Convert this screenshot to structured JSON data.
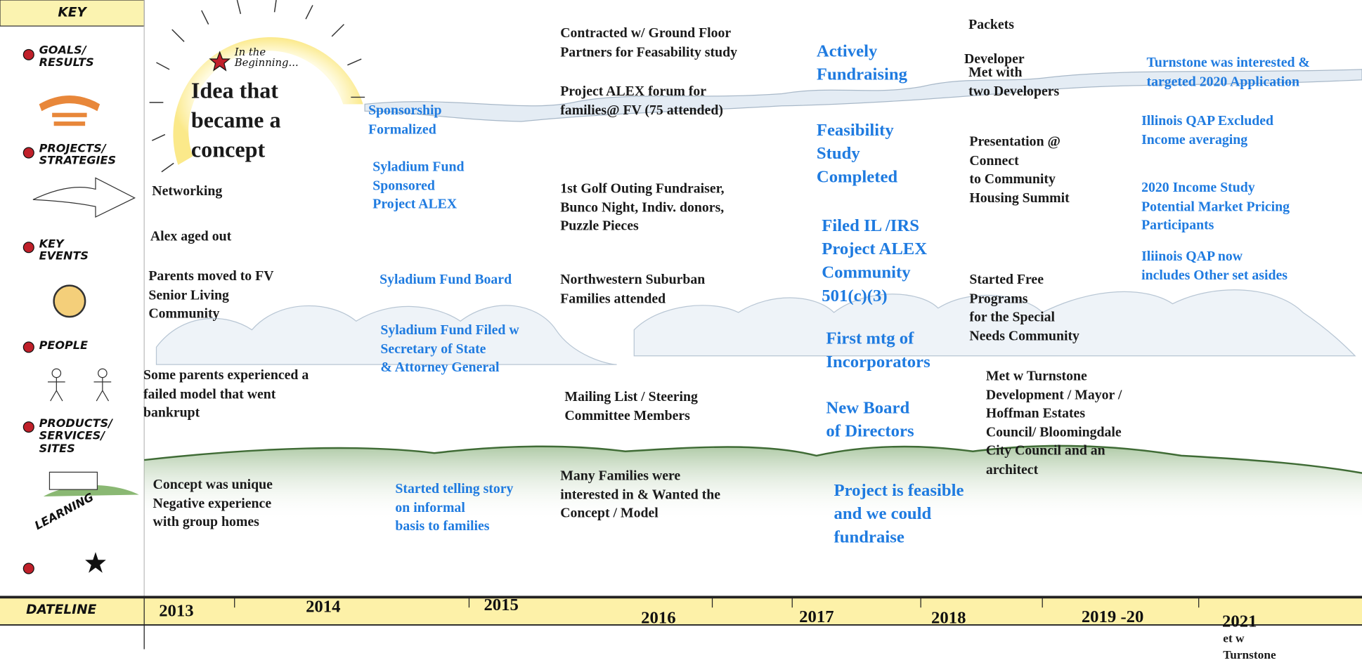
{
  "key": {
    "title": "KEY",
    "items": [
      {
        "lines": [
          "GOALS/",
          "RESULTS"
        ]
      },
      {
        "lines": [
          "PROJECTS/",
          "STRATEGIES"
        ]
      },
      {
        "lines": [
          "KEY",
          "EVENTS"
        ]
      },
      {
        "lines": [
          "PEOPLE"
        ]
      },
      {
        "lines": [
          "PRODUCTS/",
          "SERVICES/",
          "SITES"
        ]
      },
      {
        "lines": [
          "LEARNING"
        ]
      }
    ]
  },
  "intro": {
    "caption": [
      "In the",
      "Beginning..."
    ],
    "lines": [
      "Idea that",
      "became a",
      "concept"
    ]
  },
  "notes": [
    {
      "color": "black",
      "lines": [
        "Networking"
      ]
    },
    {
      "color": "black",
      "lines": [
        "Alex aged out"
      ]
    },
    {
      "color": "black",
      "lines": [
        "Parents moved to FV",
        "Senior Living",
        "Community"
      ]
    },
    {
      "color": "black",
      "lines": [
        "Some parents experienced a",
        "failed model that went",
        "bankrupt"
      ]
    },
    {
      "color": "black",
      "lines": [
        "Concept was unique",
        "Negative experience",
        "with group homes"
      ]
    },
    {
      "color": "blue",
      "lines": [
        "Sponsorship",
        "Formalized"
      ]
    },
    {
      "color": "blue",
      "lines": [
        "Syladium Fund",
        "Sponsored",
        "Project ALEX"
      ]
    },
    {
      "color": "blue",
      "lines": [
        "Syladium Fund Board"
      ]
    },
    {
      "color": "blue",
      "lines": [
        "Syladium Fund Filed w",
        "Secretary of State",
        "& Attorney General"
      ]
    },
    {
      "color": "blue",
      "lines": [
        "Started telling story",
        "on informal",
        "basis to families"
      ]
    },
    {
      "color": "black",
      "lines": [
        "Contracted w/ Ground Floor",
        "Partners for Feasability study"
      ]
    },
    {
      "color": "black",
      "lines": [
        "Project ALEX forum for",
        "families@ FV (75 attended)"
      ]
    },
    {
      "color": "black",
      "lines": [
        "1st Golf Outing Fundraiser,",
        "Bunco Night, Indiv. donors,",
        "Puzzle Pieces"
      ]
    },
    {
      "color": "black",
      "lines": [
        "Northwestern Suburban",
        "Families attended"
      ]
    },
    {
      "color": "black",
      "lines": [
        "Mailing List / Steering",
        "Committee Members"
      ]
    },
    {
      "color": "black",
      "lines": [
        "Many Families were",
        "interested in & Wanted the",
        "Concept / Model"
      ]
    },
    {
      "color": "blue",
      "lines": [
        "Actively",
        "Fundraising"
      ]
    },
    {
      "color": "blue",
      "lines": [
        "Feasibility",
        "Study",
        "Completed"
      ]
    },
    {
      "color": "blue",
      "lines": [
        "Filed IL /IRS",
        "Project ALEX",
        "Community",
        "501(c)(3)"
      ]
    },
    {
      "color": "blue",
      "lines": [
        "First mtg of",
        "Incorporators"
      ]
    },
    {
      "color": "blue",
      "lines": [
        "New Board",
        "of Directors"
      ]
    },
    {
      "color": "blue",
      "lines": [
        "Project is feasible",
        "and we could",
        "fundraise"
      ]
    },
    {
      "color": "black",
      "lines": [
        "Packets"
      ]
    },
    {
      "color": "black",
      "lines": [
        "Developer"
      ]
    },
    {
      "color": "black",
      "lines": [
        "Met with",
        "two Developers"
      ]
    },
    {
      "color": "black",
      "lines": [
        "Presentation @",
        "Connect",
        "to Community",
        "Housing Summit"
      ]
    },
    {
      "color": "black",
      "lines": [
        "Started Free",
        "Programs",
        "for the Special",
        "Needs Community"
      ]
    },
    {
      "color": "black",
      "lines": [
        "Met w Turnstone",
        "Development / Mayor /",
        "Hoffman Estates",
        "Council/ Bloomingdale",
        "City Council and an",
        "architect"
      ]
    },
    {
      "color": "blue",
      "lines": [
        "Turnstone was interested &",
        "targeted 2020 Application"
      ]
    },
    {
      "color": "blue",
      "lines": [
        "Illinois QAP Excluded",
        "Income averaging"
      ]
    },
    {
      "color": "blue",
      "lines": [
        "2020 Income Study",
        "Potential Market Pricing",
        "Participants"
      ]
    },
    {
      "color": "blue",
      "lines": [
        "Iliinois QAP now",
        "includes Other set asides"
      ]
    },
    {
      "color": "black",
      "lines": [
        "et w",
        "Turnstone"
      ]
    }
  ],
  "timeline": {
    "label": "DATELINE",
    "years": [
      "2013",
      "2014",
      "2015",
      "2016",
      "2017",
      "2018",
      "2019 -20",
      "2021"
    ]
  }
}
